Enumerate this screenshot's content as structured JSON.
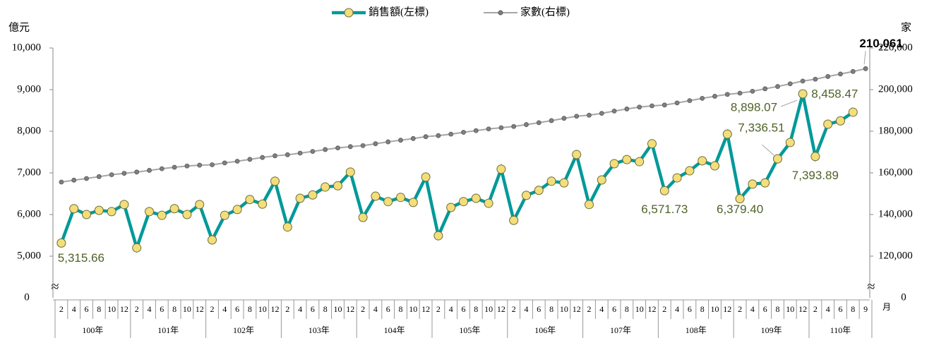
{
  "chart_data": {
    "type": "line",
    "y_unit": "億元",
    "y2_unit": "家",
    "x_unit": "月",
    "years": [
      {
        "label": "100年",
        "months": [
          "2",
          "4",
          "6",
          "8",
          "10",
          "12"
        ]
      },
      {
        "label": "101年",
        "months": [
          "2",
          "4",
          "6",
          "8",
          "10",
          "12"
        ]
      },
      {
        "label": "102年",
        "months": [
          "2",
          "4",
          "6",
          "8",
          "10",
          "12"
        ]
      },
      {
        "label": "103年",
        "months": [
          "2",
          "4",
          "6",
          "8",
          "10",
          "12"
        ]
      },
      {
        "label": "104年",
        "months": [
          "2",
          "4",
          "6",
          "8",
          "10",
          "12"
        ]
      },
      {
        "label": "105年",
        "months": [
          "2",
          "4",
          "6",
          "8",
          "10",
          "12"
        ]
      },
      {
        "label": "106年",
        "months": [
          "2",
          "4",
          "6",
          "8",
          "10",
          "12"
        ]
      },
      {
        "label": "107年",
        "months": [
          "2",
          "4",
          "6",
          "8",
          "10",
          "12"
        ]
      },
      {
        "label": "108年",
        "months": [
          "2",
          "4",
          "6",
          "8",
          "10",
          "12"
        ]
      },
      {
        "label": "109年",
        "months": [
          "2",
          "4",
          "6",
          "8",
          "10",
          "12"
        ]
      },
      {
        "label": "110年",
        "months": [
          "2",
          "4",
          "6",
          "8",
          "9"
        ]
      }
    ],
    "ylim": [
      4000,
      10000
    ],
    "yticks": [
      {
        "value": 5000,
        "label": "5,000"
      },
      {
        "value": 6000,
        "label": "6,000"
      },
      {
        "value": 7000,
        "label": "7,000"
      },
      {
        "value": 8000,
        "label": "8,000"
      },
      {
        "value": 9000,
        "label": "9,000"
      },
      {
        "value": 10000,
        "label": "10,000"
      }
    ],
    "y_break_label": "0",
    "y2lim": [
      100000,
      220000
    ],
    "y2ticks": [
      {
        "value": 120000,
        "label": "120,000"
      },
      {
        "value": 140000,
        "label": "140,000"
      },
      {
        "value": 160000,
        "label": "160,000"
      },
      {
        "value": 180000,
        "label": "180,000"
      },
      {
        "value": 200000,
        "label": "200,000"
      },
      {
        "value": 220000,
        "label": "220,000"
      }
    ],
    "y2_break_label": "0",
    "series": [
      {
        "name": "銷售額(左標)",
        "color": "#009999",
        "marker_color": "#F3DE7A",
        "values": [
          5315.66,
          6140,
          6000,
          6100,
          6070,
          6240,
          5200,
          6070,
          5980,
          6140,
          6000,
          6240,
          5390,
          5980,
          6120,
          6360,
          6250,
          6800,
          5700,
          6390,
          6470,
          6660,
          6690,
          7020,
          5930,
          6440,
          6310,
          6410,
          6290,
          6900,
          5490,
          6170,
          6310,
          6390,
          6270,
          7090,
          5860,
          6460,
          6580,
          6800,
          6760,
          7440,
          6240,
          6830,
          7220,
          7320,
          7270,
          7700,
          6571.73,
          6880,
          7050,
          7290,
          7170,
          7930,
          6379.4,
          6730,
          6760,
          7336.51,
          7730,
          8898.07,
          7393.89,
          8170,
          8250,
          8458.47,
          null
        ],
        "value_labels": [
          "5,315.66",
          null,
          null,
          null,
          null,
          null,
          null,
          null,
          null,
          null,
          null,
          null,
          null,
          null,
          null,
          null,
          null,
          null,
          null,
          null,
          null,
          null,
          null,
          null,
          null,
          null,
          null,
          null,
          null,
          null,
          null,
          null,
          null,
          null,
          null,
          null,
          null,
          null,
          null,
          null,
          null,
          null,
          null,
          null,
          null,
          null,
          null,
          null,
          "6,571.73",
          null,
          null,
          null,
          null,
          null,
          "6,379.40",
          null,
          null,
          "7,336.51",
          null,
          "8,898.07",
          "7,393.89",
          null,
          null,
          "8,458.47",
          null
        ]
      },
      {
        "name": "家數(右標)",
        "color": "#A6A6A6",
        "marker_color": "#7F7F7F",
        "axis": "y2",
        "values": [
          155600,
          156500,
          157300,
          158200,
          159100,
          159800,
          160400,
          161200,
          162000,
          162700,
          163300,
          163700,
          163900,
          164800,
          165600,
          166500,
          167400,
          168200,
          168700,
          169500,
          170300,
          171200,
          172000,
          172600,
          173100,
          174000,
          174900,
          175700,
          176500,
          177400,
          177900,
          178600,
          179500,
          180300,
          181100,
          181700,
          182300,
          183200,
          184100,
          185100,
          186200,
          187200,
          187700,
          188600,
          189700,
          190700,
          191600,
          192200,
          192600,
          193600,
          194700,
          195800,
          196800,
          197700,
          198300,
          199200,
          200400,
          201500,
          202800,
          204100,
          205000,
          206300,
          207500,
          208700,
          210061
        ],
        "value_labels": [
          null,
          null,
          null,
          null,
          null,
          null,
          null,
          null,
          null,
          null,
          null,
          null,
          null,
          null,
          null,
          null,
          null,
          null,
          null,
          null,
          null,
          null,
          null,
          null,
          null,
          null,
          null,
          null,
          null,
          null,
          null,
          null,
          null,
          null,
          null,
          null,
          null,
          null,
          null,
          null,
          null,
          null,
          null,
          null,
          null,
          null,
          null,
          null,
          null,
          null,
          null,
          null,
          null,
          null,
          null,
          null,
          null,
          null,
          null,
          null,
          null,
          null,
          null,
          null,
          "210,061"
        ]
      }
    ]
  }
}
